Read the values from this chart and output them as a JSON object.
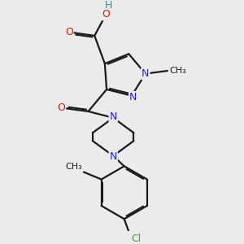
{
  "background_color": "#ebebeb",
  "bond_color": "#1a1a1a",
  "bond_width": 1.6,
  "atom_colors": {
    "N": "#2222cc",
    "O": "#cc2200",
    "Cl": "#33aa33",
    "H": "#448888",
    "C": "#1a1a1a",
    "methyl": "#1a1a1a"
  },
  "font_size": 9
}
